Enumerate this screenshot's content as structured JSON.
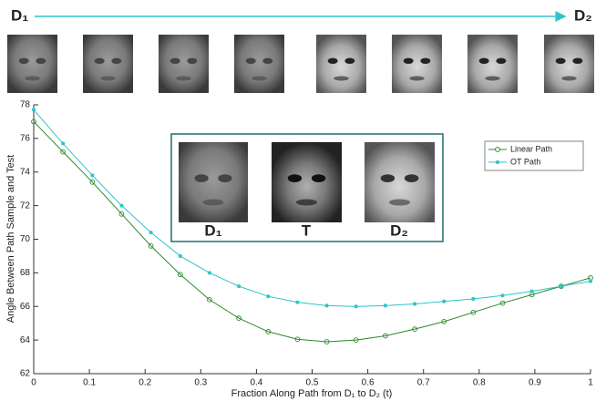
{
  "path_labels": {
    "start": "D₁",
    "end": "D₂"
  },
  "inset_labels": [
    "D₁",
    "T",
    "D₂"
  ],
  "chart_data": {
    "type": "line",
    "x_label": "Fraction Along Path from D₁ to D₂ (t)",
    "y_label": "Angle Between Path Sample and Test",
    "x": [
      0,
      0.0526,
      0.1053,
      0.1579,
      0.2105,
      0.2632,
      0.3158,
      0.3684,
      0.4211,
      0.4737,
      0.5263,
      0.5789,
      0.6316,
      0.6842,
      0.7368,
      0.7895,
      0.8421,
      0.8947,
      0.9474,
      1
    ],
    "series": [
      {
        "name": "Linear Path",
        "color": "#2a8a2a",
        "marker": "open-circle",
        "values": [
          77.0,
          75.2,
          73.4,
          71.5,
          69.6,
          67.9,
          66.4,
          65.3,
          64.5,
          64.05,
          63.9,
          64.0,
          64.25,
          64.65,
          65.1,
          65.65,
          66.2,
          66.7,
          67.2,
          67.7
        ]
      },
      {
        "name": "OT Path",
        "color": "#2ec4c8",
        "marker": "dot",
        "values": [
          77.7,
          75.7,
          73.8,
          72.0,
          70.4,
          69.0,
          68.0,
          67.2,
          66.6,
          66.25,
          66.05,
          66.0,
          66.05,
          66.15,
          66.3,
          66.45,
          66.65,
          66.9,
          67.2,
          67.5
        ]
      }
    ],
    "xlim": [
      0,
      1
    ],
    "xticks": [
      0,
      0.1,
      0.2,
      0.3,
      0.4,
      0.5,
      0.6,
      0.7,
      0.8,
      0.9,
      1
    ],
    "ylim": [
      62,
      78
    ],
    "yticks": [
      62,
      64,
      66,
      68,
      70,
      72,
      74,
      76,
      78
    ],
    "legend": "top-right"
  }
}
